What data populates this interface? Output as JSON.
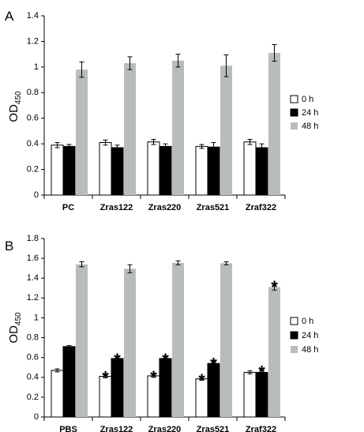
{
  "chart_data": [
    {
      "panel_label": "A",
      "type": "bar",
      "ylabel": "OD",
      "ylabel_subscript": "450",
      "ylim": [
        0,
        1.4
      ],
      "yticks": [
        "0",
        "0.2",
        "0.4",
        "0.6",
        "0.8",
        "1",
        "1.2",
        "1.4"
      ],
      "grid": false,
      "legend_position": "right",
      "categories": [
        "PC",
        "Zras122",
        "Zras220",
        "Zras521",
        "Zraf322"
      ],
      "series": [
        {
          "name": "0 h",
          "color": "#ffffff",
          "values": [
            0.39,
            0.41,
            0.415,
            0.38,
            0.415
          ],
          "errors": [
            0.02,
            0.02,
            0.02,
            0.015,
            0.02
          ],
          "significant": [
            false,
            false,
            false,
            false,
            false
          ]
        },
        {
          "name": "24 h",
          "color": "#000000",
          "values": [
            0.38,
            0.37,
            0.38,
            0.375,
            0.37
          ],
          "errors": [
            0.015,
            0.02,
            0.02,
            0.035,
            0.03
          ],
          "significant": [
            false,
            false,
            false,
            false,
            false
          ]
        },
        {
          "name": "48 h",
          "color": "#b8bdbb",
          "values": [
            0.98,
            1.03,
            1.05,
            1.01,
            1.11
          ],
          "errors": [
            0.06,
            0.05,
            0.05,
            0.085,
            0.065
          ],
          "significant": [
            false,
            false,
            false,
            false,
            false
          ]
        }
      ]
    },
    {
      "panel_label": "B",
      "type": "bar",
      "ylabel": "OD",
      "ylabel_subscript": "450",
      "ylim": [
        0,
        1.8
      ],
      "yticks": [
        "0",
        "0.2",
        "0.4",
        "0.6",
        "0.8",
        "1",
        "1.2",
        "1.4",
        "1.6",
        "1.8"
      ],
      "grid": false,
      "legend_position": "right",
      "categories": [
        "PBS",
        "Zras122",
        "Zras220",
        "Zras521",
        "Zraf322"
      ],
      "significance_marker": "*",
      "series": [
        {
          "name": "0 h",
          "color": "#ffffff",
          "values": [
            0.47,
            0.41,
            0.415,
            0.385,
            0.45
          ],
          "errors": [
            0.015,
            0.015,
            0.015,
            0.015,
            0.015
          ],
          "significant": [
            false,
            true,
            true,
            true,
            false
          ]
        },
        {
          "name": "24 h",
          "color": "#000000",
          "values": [
            0.71,
            0.59,
            0.59,
            0.54,
            0.45
          ],
          "errors": [
            0.01,
            0.015,
            0.015,
            0.02,
            0.03
          ],
          "significant": [
            false,
            true,
            true,
            true,
            true
          ]
        },
        {
          "name": "48 h",
          "color": "#b8bdbb",
          "values": [
            1.54,
            1.495,
            1.555,
            1.55,
            1.31
          ],
          "errors": [
            0.025,
            0.04,
            0.02,
            0.015,
            0.03
          ],
          "significant": [
            false,
            false,
            false,
            false,
            true
          ]
        }
      ]
    }
  ]
}
